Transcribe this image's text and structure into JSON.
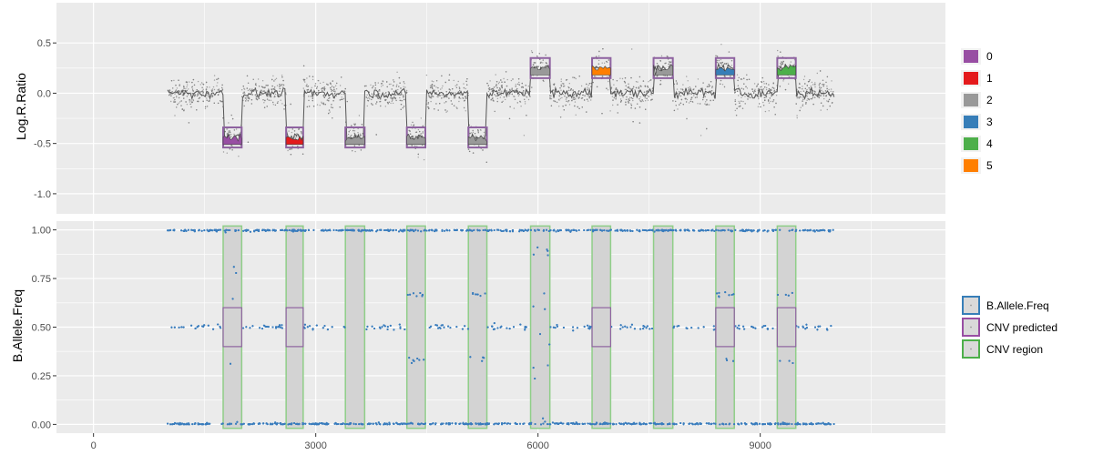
{
  "chart_data": [
    {
      "panel": "top",
      "type": "scatter",
      "ylabel": "Log.R.Ratio",
      "ylim": [
        -1.2,
        0.9
      ],
      "yticks": [
        {
          "v": 0.5,
          "label": "0.5"
        },
        {
          "v": 0.0,
          "label": "0.0"
        },
        {
          "v": -0.5,
          "label": "-0.5"
        },
        {
          "v": -1.0,
          "label": "-1.0"
        }
      ],
      "baseline_mean": 0.0,
      "segments": [
        {
          "x0": 1750,
          "x1": 2000,
          "mean": -0.44,
          "copy_number": "0"
        },
        {
          "x0": 2600,
          "x1": 2830,
          "mean": -0.44,
          "copy_number": "1"
        },
        {
          "x0": 3400,
          "x1": 3660,
          "mean": -0.44,
          "copy_number": "2"
        },
        {
          "x0": 4230,
          "x1": 4480,
          "mean": -0.44,
          "copy_number": "2"
        },
        {
          "x0": 5060,
          "x1": 5310,
          "mean": -0.44,
          "copy_number": "2"
        },
        {
          "x0": 5900,
          "x1": 6160,
          "mean": 0.25,
          "copy_number": "2"
        },
        {
          "x0": 6730,
          "x1": 6980,
          "mean": 0.25,
          "copy_number": "5"
        },
        {
          "x0": 7560,
          "x1": 7820,
          "mean": 0.25,
          "copy_number": "2"
        },
        {
          "x0": 8400,
          "x1": 8650,
          "mean": 0.25,
          "copy_number": "3"
        },
        {
          "x0": 9230,
          "x1": 9480,
          "mean": 0.25,
          "copy_number": "4"
        }
      ],
      "legend": {
        "entries": [
          {
            "label": "0",
            "color": "#984ea3"
          },
          {
            "label": "1",
            "color": "#e41a1c"
          },
          {
            "label": "2",
            "color": "#999999"
          },
          {
            "label": "3",
            "color": "#377eb8"
          },
          {
            "label": "4",
            "color": "#4daf4a"
          },
          {
            "label": "5",
            "color": "#ff7f00"
          }
        ]
      }
    },
    {
      "panel": "bottom",
      "type": "scatter",
      "ylabel": "B.Allele.Freq",
      "xlabel": "",
      "ylim": [
        -0.045,
        1.045
      ],
      "yticks": [
        {
          "v": 1.0,
          "label": "1.00"
        },
        {
          "v": 0.75,
          "label": "0.75"
        },
        {
          "v": 0.5,
          "label": "0.50"
        },
        {
          "v": 0.25,
          "label": "0.25"
        },
        {
          "v": 0.0,
          "label": "0.00"
        }
      ],
      "bands": [
        0.0,
        0.5,
        1.0
      ],
      "cnv_regions": [
        {
          "x0": 1750,
          "x1": 2000,
          "pattern": "scatter"
        },
        {
          "x0": 2600,
          "x1": 2830,
          "pattern": "homozygous"
        },
        {
          "x0": 3400,
          "x1": 3660,
          "pattern": "homozygous"
        },
        {
          "x0": 4230,
          "x1": 4480,
          "pattern": "thirds"
        },
        {
          "x0": 5060,
          "x1": 5310,
          "pattern": "thirds"
        },
        {
          "x0": 5900,
          "x1": 6160,
          "pattern": "scatter"
        },
        {
          "x0": 6730,
          "x1": 6980,
          "pattern": "homozygous"
        },
        {
          "x0": 7560,
          "x1": 7820,
          "pattern": "homozygous"
        },
        {
          "x0": 8400,
          "x1": 8650,
          "pattern": "thirds"
        },
        {
          "x0": 9230,
          "x1": 9480,
          "pattern": "thirds"
        }
      ],
      "cnv_predicted": [
        {
          "x0": 1750,
          "x1": 2000,
          "y0": 0.4,
          "y1": 0.6
        },
        {
          "x0": 2600,
          "x1": 2830,
          "y0": 0.4,
          "y1": 0.6
        },
        {
          "x0": 6730,
          "x1": 6980,
          "y0": 0.4,
          "y1": 0.6
        },
        {
          "x0": 8400,
          "x1": 8650,
          "y0": 0.4,
          "y1": 0.6
        },
        {
          "x0": 9230,
          "x1": 9480,
          "y0": 0.4,
          "y1": 0.6
        }
      ],
      "legend": {
        "entries": [
          {
            "label": "B.Allele.Freq",
            "color": "#377eb8"
          },
          {
            "label": "CNV predicted",
            "color": "#984ea3"
          },
          {
            "label": "CNV region",
            "color": "#4daf4a"
          }
        ]
      }
    }
  ],
  "x_axis": {
    "xlim": [
      -500,
      11500
    ],
    "data_range": [
      1000,
      10000
    ],
    "ticks": [
      {
        "v": 0,
        "label": "0"
      },
      {
        "v": 3000,
        "label": "3000"
      },
      {
        "v": 6000,
        "label": "6000"
      },
      {
        "v": 9000,
        "label": "9000"
      }
    ],
    "minor": [
      1500,
      4500,
      7500,
      10500
    ]
  },
  "colors": {
    "panel_bg": "#ebebeb",
    "grid": "#ffffff",
    "baf_point": "#3a7dbd",
    "lrr_point": "#7f7f7f",
    "lrr_line": "#555555",
    "region_fill": "#d3d3d3",
    "region_stroke": "#8fce88",
    "predicted_stroke": "#8e62a0"
  }
}
